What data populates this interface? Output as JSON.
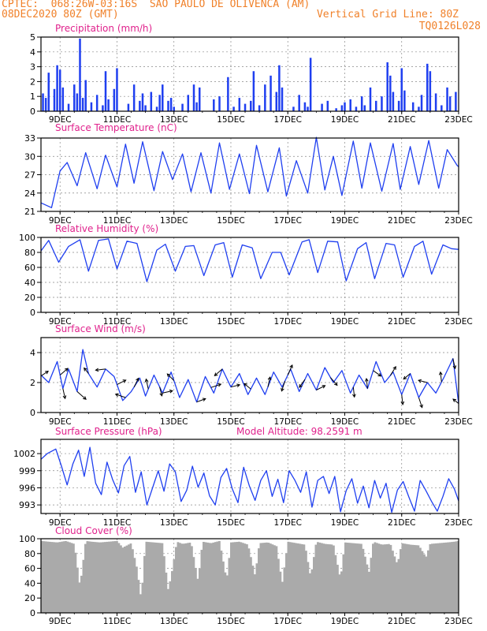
{
  "header": {
    "line1": "CPTEC:  068:26W-03:16S  SAO PAULO DE OLIVENCA (AM)",
    "line2_left": "08DEC2020 80Z (GMT)",
    "line2_right": "Vertical Grid Line: 80Z",
    "line3_right": "TQ0126L028"
  },
  "x_ticks": [
    "9DEC",
    "11DEC",
    "13DEC",
    "15DEC",
    "17DEC",
    "19DEC",
    "21DEC",
    "23DEC"
  ],
  "colors": {
    "series": "#1f3ff0",
    "cloud": "#aaaaaa",
    "title": "#e0218c",
    "header": "#f0812a",
    "grid": "#888888"
  },
  "chart_data": [
    {
      "type": "bar",
      "title": "Precipitation (mm/h)",
      "ylim": [
        0,
        5
      ],
      "yticks": [
        "0",
        "1",
        "2",
        "3",
        "4",
        "5"
      ],
      "x_range": [
        8.33,
        23.0
      ],
      "x": [
        8.4,
        8.5,
        8.6,
        8.8,
        8.9,
        9.0,
        9.1,
        9.3,
        9.5,
        9.6,
        9.7,
        9.8,
        9.9,
        10.1,
        10.3,
        10.5,
        10.6,
        10.7,
        10.9,
        11.0,
        11.4,
        11.6,
        11.8,
        11.9,
        12.0,
        12.2,
        12.4,
        12.5,
        12.6,
        12.8,
        12.9,
        13.0,
        13.3,
        13.5,
        13.7,
        13.8,
        13.9,
        14.4,
        14.6,
        14.9,
        15.1,
        15.3,
        15.5,
        15.7,
        15.8,
        16.0,
        16.2,
        16.4,
        16.6,
        16.7,
        16.8,
        17.2,
        17.4,
        17.6,
        17.7,
        17.8,
        18.2,
        18.4,
        18.7,
        18.9,
        19.0,
        19.2,
        19.4,
        19.6,
        19.7,
        19.9,
        20.1,
        20.3,
        20.5,
        20.6,
        20.7,
        20.9,
        21.0,
        21.1,
        21.4,
        21.6,
        21.7,
        21.9,
        22.0,
        22.2,
        22.4,
        22.6,
        22.7,
        22.9
      ],
      "values": [
        1.2,
        0.9,
        2.6,
        1.5,
        3.1,
        2.8,
        1.6,
        0.5,
        1.8,
        1.2,
        4.9,
        0.9,
        2.1,
        0.6,
        1.1,
        0.4,
        2.7,
        0.8,
        1.5,
        2.9,
        0.5,
        1.8,
        0.7,
        1.2,
        0.4,
        1.3,
        0.3,
        1.1,
        1.8,
        0.7,
        0.9,
        0.3,
        0.5,
        1.1,
        1.8,
        0.6,
        1.6,
        0.8,
        1.0,
        2.3,
        0.3,
        0.9,
        0.5,
        0.7,
        2.7,
        0.4,
        1.8,
        2.4,
        1.3,
        3.1,
        1.6,
        0.3,
        1.1,
        0.6,
        0.3,
        3.6,
        0.5,
        0.7,
        0.2,
        0.4,
        0.6,
        0.8,
        0.3,
        1.0,
        0.4,
        1.6,
        0.7,
        1.0,
        3.3,
        2.4,
        1.3,
        0.7,
        2.9,
        1.4,
        0.6,
        0.3,
        1.1,
        3.2,
        2.7,
        1.2,
        0.4,
        1.6,
        1.0,
        1.3
      ]
    },
    {
      "type": "line",
      "title": "Surface Temperature (nC)",
      "ylim": [
        21,
        33
      ],
      "yticks": [
        "21",
        "24",
        "27",
        "30",
        "33"
      ],
      "x_range": [
        8.33,
        23.0
      ],
      "x": [
        8.33,
        8.7,
        9.0,
        9.25,
        9.6,
        9.9,
        10.3,
        10.6,
        11.0,
        11.3,
        11.6,
        11.9,
        12.3,
        12.6,
        12.95,
        13.3,
        13.6,
        13.95,
        14.3,
        14.6,
        14.95,
        15.3,
        15.65,
        15.9,
        16.3,
        16.7,
        16.95,
        17.3,
        17.7,
        18.0,
        18.3,
        18.6,
        18.9,
        19.3,
        19.6,
        19.9,
        20.3,
        20.7,
        20.95,
        21.3,
        21.6,
        21.95,
        22.3,
        22.6,
        22.95,
        23.0
      ],
      "values": [
        22.4,
        21.6,
        27.6,
        29.0,
        25.2,
        30.6,
        24.7,
        30.2,
        25.0,
        32.0,
        25.6,
        32.4,
        24.4,
        30.8,
        26.2,
        30.4,
        24.2,
        30.6,
        24.0,
        32.2,
        24.6,
        30.4,
        23.9,
        31.8,
        24.2,
        31.4,
        23.5,
        29.3,
        24.0,
        33.1,
        24.5,
        30.0,
        23.6,
        32.5,
        24.8,
        32.2,
        24.3,
        32.1,
        24.6,
        31.6,
        25.4,
        32.6,
        24.8,
        31.1,
        28.5,
        28.3
      ]
    },
    {
      "type": "line",
      "title": "Relative Humidity (%)",
      "ylim": [
        0,
        100
      ],
      "yticks": [
        "0",
        "20",
        "40",
        "60",
        "80",
        "100"
      ],
      "x_range": [
        8.33,
        23.0
      ],
      "x": [
        8.33,
        8.6,
        8.95,
        9.3,
        9.7,
        10.0,
        10.35,
        10.7,
        11.0,
        11.35,
        11.7,
        12.05,
        12.4,
        12.7,
        13.05,
        13.4,
        13.7,
        14.05,
        14.45,
        14.75,
        15.05,
        15.4,
        15.75,
        16.05,
        16.45,
        16.75,
        17.05,
        17.5,
        17.75,
        18.05,
        18.4,
        18.75,
        19.05,
        19.45,
        19.75,
        20.05,
        20.45,
        20.75,
        21.05,
        21.45,
        21.75,
        22.05,
        22.45,
        22.75,
        23.0
      ],
      "values": [
        82,
        96,
        67,
        88,
        97,
        55,
        96,
        98,
        58,
        95,
        92,
        41,
        83,
        91,
        55,
        88,
        89,
        49,
        90,
        93,
        47,
        90,
        86,
        45,
        80,
        80,
        50,
        94,
        97,
        53,
        95,
        94,
        42,
        85,
        93,
        45,
        92,
        90,
        47,
        88,
        95,
        51,
        90,
        85,
        84
      ]
    },
    {
      "type": "line",
      "title": "Surface Wind (m/s)",
      "ylim": [
        0,
        5
      ],
      "yticks": [
        "0",
        "2",
        "4"
      ],
      "x_range": [
        8.33,
        23.0
      ],
      "x": [
        8.33,
        8.6,
        8.9,
        9.1,
        9.3,
        9.6,
        9.8,
        10.0,
        10.3,
        10.6,
        10.9,
        11.2,
        11.5,
        11.8,
        12.0,
        12.3,
        12.6,
        12.9,
        13.2,
        13.5,
        13.8,
        14.1,
        14.4,
        14.7,
        15.0,
        15.3,
        15.6,
        15.9,
        16.2,
        16.5,
        16.8,
        17.1,
        17.4,
        17.7,
        18.0,
        18.3,
        18.6,
        18.9,
        19.2,
        19.5,
        19.8,
        20.1,
        20.4,
        20.7,
        21.0,
        21.3,
        21.6,
        21.9,
        22.2,
        22.5,
        22.8,
        23.0
      ],
      "values": [
        2.5,
        2.0,
        3.4,
        1.6,
        2.9,
        1.4,
        4.2,
        2.6,
        1.7,
        2.9,
        2.4,
        0.8,
        1.4,
        2.3,
        1.1,
        2.5,
        1.3,
        2.7,
        1.0,
        2.2,
        0.7,
        2.4,
        1.3,
        2.9,
        1.7,
        2.6,
        1.2,
        2.3,
        1.2,
        2.7,
        1.7,
        2.9,
        1.4,
        2.6,
        1.5,
        3.0,
        2.0,
        2.8,
        1.3,
        2.5,
        1.6,
        3.4,
        2.0,
        2.7,
        1.2,
        2.6,
        1.0,
        2.0,
        1.3,
        2.4,
        3.6,
        0.6
      ]
    },
    {
      "type": "line",
      "title": "Surface Pressure (hPa)",
      "annotation": "Model Altitude: 98.2591 m",
      "ylim": [
        991.5,
        1004.5
      ],
      "yticks": [
        "993",
        "996",
        "999",
        "1002"
      ],
      "x_range": [
        8.33,
        23.0
      ],
      "x": [
        8.33,
        8.55,
        8.85,
        9.05,
        9.25,
        9.45,
        9.65,
        9.85,
        10.05,
        10.25,
        10.45,
        10.65,
        10.85,
        11.05,
        11.25,
        11.45,
        11.65,
        11.85,
        12.05,
        12.25,
        12.45,
        12.65,
        12.85,
        13.05,
        13.25,
        13.45,
        13.65,
        13.85,
        14.05,
        14.25,
        14.45,
        14.65,
        14.85,
        15.05,
        15.25,
        15.45,
        15.65,
        15.85,
        16.05,
        16.25,
        16.45,
        16.65,
        16.85,
        17.05,
        17.25,
        17.45,
        17.65,
        17.85,
        18.05,
        18.25,
        18.45,
        18.65,
        18.85,
        19.05,
        19.25,
        19.45,
        19.65,
        19.85,
        20.05,
        20.25,
        20.45,
        20.65,
        20.85,
        21.05,
        21.25,
        21.45,
        21.65,
        21.85,
        22.05,
        22.25,
        22.45,
        22.65,
        22.85,
        23.0
      ],
      "values": [
        1001.0,
        1002.0,
        1002.8,
        999.8,
        996.5,
        1000.2,
        1002.6,
        998.0,
        1003.1,
        996.8,
        994.8,
        1000.5,
        997.4,
        995.1,
        999.9,
        1001.5,
        995.2,
        998.8,
        993.0,
        996.0,
        999.0,
        995.4,
        1000.2,
        998.8,
        993.6,
        995.6,
        999.8,
        996.1,
        998.6,
        994.6,
        993.0,
        997.8,
        999.4,
        995.8,
        993.4,
        999.6,
        996.3,
        993.8,
        997.3,
        999.0,
        994.5,
        997.5,
        993.4,
        999.0,
        997.3,
        995.2,
        998.8,
        992.6,
        997.3,
        998.0,
        995.0,
        998.0,
        991.8,
        995.5,
        997.6,
        993.3,
        996.3,
        992.5,
        997.3,
        994.2,
        996.8,
        991.7,
        995.6,
        997.1,
        994.4,
        991.9,
        997.3,
        995.5,
        993.6,
        991.9,
        994.5,
        997.6,
        995.8,
        993.7
      ]
    },
    {
      "type": "area",
      "title": "Cloud Cover (%)",
      "ylim": [
        0,
        100
      ],
      "yticks": [
        "0",
        "20",
        "40",
        "60",
        "80",
        "100"
      ],
      "x_range": [
        8.33,
        23.0
      ],
      "x": [
        8.33,
        8.6,
        8.9,
        9.2,
        9.5,
        9.7,
        9.9,
        10.1,
        10.4,
        10.7,
        11.0,
        11.2,
        11.5,
        11.7,
        11.85,
        12.0,
        12.3,
        12.6,
        12.8,
        12.95,
        13.1,
        13.3,
        13.6,
        13.85,
        14.0,
        14.3,
        14.6,
        14.85,
        15.0,
        15.3,
        15.6,
        15.85,
        16.0,
        16.3,
        16.6,
        16.8,
        17.0,
        17.3,
        17.6,
        17.8,
        18.0,
        18.3,
        18.6,
        18.85,
        19.0,
        19.3,
        19.6,
        19.85,
        20.0,
        20.3,
        20.6,
        20.85,
        21.0,
        21.3,
        21.6,
        21.85,
        22.0,
        22.3,
        22.6,
        22.85,
        23.0
      ],
      "values": [
        97,
        96,
        95,
        97,
        93,
        35,
        97,
        96,
        95,
        96,
        97,
        88,
        94,
        60,
        18,
        96,
        95,
        94,
        30,
        60,
        96,
        93,
        95,
        42,
        96,
        94,
        97,
        44,
        95,
        96,
        92,
        50,
        94,
        95,
        90,
        40,
        96,
        94,
        92,
        48,
        96,
        93,
        92,
        45,
        95,
        94,
        93,
        55,
        96,
        92,
        93,
        65,
        94,
        92,
        91,
        75,
        93,
        94,
        95,
        96,
        97
      ]
    }
  ],
  "wind_vectors": [
    {
      "x": 8.35,
      "u": 0.6,
      "v": 0.4
    },
    {
      "x": 9.0,
      "u": 0.7,
      "v": 0.6
    },
    {
      "x": 9.1,
      "u": 0.2,
      "v": -0.9
    },
    {
      "x": 9.6,
      "u": 0.8,
      "v": -0.7
    },
    {
      "x": 10.0,
      "u": -0.4,
      "v": 0.5
    },
    {
      "x": 10.6,
      "u": -0.9,
      "v": -0.1
    },
    {
      "x": 11.0,
      "u": 0.8,
      "v": 0.4
    },
    {
      "x": 11.3,
      "u": -0.9,
      "v": 0.3
    },
    {
      "x": 11.6,
      "u": 0.4,
      "v": 0.8
    },
    {
      "x": 12.1,
      "u": -0.2,
      "v": 0.9
    },
    {
      "x": 12.5,
      "u": 0.2,
      "v": -0.8
    },
    {
      "x": 12.6,
      "u": 0.9,
      "v": 0.2
    },
    {
      "x": 13.0,
      "u": -0.6,
      "v": 0.6
    },
    {
      "x": 13.8,
      "u": 0.8,
      "v": 0.3
    },
    {
      "x": 14.3,
      "u": 0.9,
      "v": 0.3
    },
    {
      "x": 14.7,
      "u": -0.7,
      "v": -0.6
    },
    {
      "x": 15.0,
      "u": 0.8,
      "v": 0.2
    },
    {
      "x": 15.7,
      "u": -0.6,
      "v": 0.5
    },
    {
      "x": 16.3,
      "u": 0.2,
      "v": 0.9
    },
    {
      "x": 16.9,
      "u": -0.3,
      "v": -0.9
    },
    {
      "x": 17.0,
      "u": 0.4,
      "v": 0.9
    },
    {
      "x": 17.6,
      "u": -0.5,
      "v": -0.7
    },
    {
      "x": 18.0,
      "u": 0.8,
      "v": 0.4
    },
    {
      "x": 18.5,
      "u": 0.6,
      "v": -0.7
    },
    {
      "x": 19.3,
      "u": 0.1,
      "v": -0.9
    },
    {
      "x": 19.8,
      "u": -0.1,
      "v": 0.9
    },
    {
      "x": 20.0,
      "u": 0.7,
      "v": -0.5
    },
    {
      "x": 20.6,
      "u": 0.5,
      "v": 0.8
    },
    {
      "x": 21.0,
      "u": 0.1,
      "v": -0.9
    },
    {
      "x": 21.3,
      "u": -0.6,
      "v": -0.5
    },
    {
      "x": 21.6,
      "u": 0.3,
      "v": -0.9
    },
    {
      "x": 21.9,
      "u": -0.8,
      "v": 0.2
    },
    {
      "x": 22.4,
      "u": -0.1,
      "v": 0.9
    },
    {
      "x": 22.8,
      "u": 0.2,
      "v": -0.9
    },
    {
      "x": 23.0,
      "u": -0.5,
      "v": 0.4
    }
  ]
}
